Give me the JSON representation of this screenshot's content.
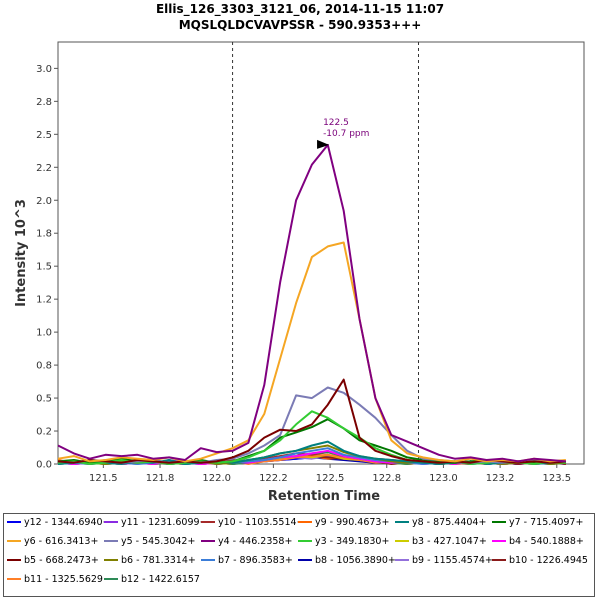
{
  "chart_data": {
    "type": "line",
    "title": "Ellis_126_3303_3121_06, 2014-11-15 11:07",
    "subtitle": "MQSLQLDCVAVPSSR - 590.9353+++",
    "xlabel": "Retention Time",
    "ylabel": "Intensity 10^3",
    "xlim": [
      121.3,
      123.62
    ],
    "ylim": [
      0,
      3.2
    ],
    "xticks": [
      "121.5",
      "121.8",
      "122.0",
      "122.2",
      "122.5",
      "122.8",
      "123.0",
      "123.2",
      "123.5"
    ],
    "xtick_values": [
      121.5,
      121.75,
      122.0,
      122.25,
      122.5,
      122.75,
      123.0,
      123.25,
      123.5
    ],
    "yticks": [
      "0.0",
      "0.2",
      "0.5",
      "0.8",
      "1.0",
      "1.2",
      "1.5",
      "1.8",
      "2.0",
      "2.2",
      "2.5",
      "2.8",
      "3.0"
    ],
    "ytick_values": [
      0,
      0.25,
      0.5,
      0.75,
      1.0,
      1.25,
      1.5,
      1.75,
      2.0,
      2.25,
      2.5,
      2.75,
      3.0
    ],
    "vlines": [
      122.07,
      122.89
    ],
    "annotation": {
      "rt": "122.5",
      "ppm": "-10.7 ppm",
      "x": 122.5,
      "y": 2.42
    },
    "x": [
      121.3,
      121.37,
      121.44,
      121.51,
      121.58,
      121.65,
      121.72,
      121.79,
      121.86,
      121.93,
      122.0,
      122.07,
      122.14,
      122.21,
      122.28,
      122.35,
      122.42,
      122.49,
      122.56,
      122.63,
      122.7,
      122.77,
      122.84,
      122.91,
      122.98,
      123.05,
      123.12,
      123.19,
      123.26,
      123.33,
      123.4,
      123.47,
      123.54
    ],
    "series": [
      {
        "name": "y12 - 1344.6940+",
        "color": "#0000ee",
        "values": [
          0.01,
          0.0,
          0.02,
          0.01,
          0.0,
          0.01,
          0.02,
          0.0,
          0.01,
          0.0,
          0.01,
          0.02,
          0.01,
          0.02,
          0.03,
          0.04,
          0.05,
          0.06,
          0.04,
          0.03,
          0.02,
          0.01,
          0.02,
          0.01,
          0.0,
          0.01,
          0.02,
          0.0,
          0.01,
          0.0,
          0.01,
          0.02,
          0.01
        ]
      },
      {
        "name": "y11 - 1231.6099+",
        "color": "#8a2be2",
        "values": [
          0.0,
          0.02,
          0.01,
          0.03,
          0.01,
          0.02,
          0.0,
          0.03,
          0.01,
          0.02,
          0.01,
          0.0,
          0.02,
          0.03,
          0.04,
          0.05,
          0.06,
          0.05,
          0.04,
          0.05,
          0.03,
          0.02,
          0.01,
          0.02,
          0.01,
          0.02,
          0.0,
          0.01,
          0.02,
          0.01,
          0.0,
          0.01,
          0.02
        ]
      },
      {
        "name": "y10 - 1103.5514+",
        "color": "#a52a2a",
        "values": [
          0.02,
          0.01,
          0.0,
          0.02,
          0.03,
          0.01,
          0.02,
          0.01,
          0.0,
          0.02,
          0.01,
          0.03,
          0.02,
          0.04,
          0.06,
          0.08,
          0.07,
          0.09,
          0.06,
          0.05,
          0.04,
          0.03,
          0.02,
          0.01,
          0.02,
          0.01,
          0.0,
          0.02,
          0.01,
          0.02,
          0.01,
          0.0,
          0.01
        ]
      },
      {
        "name": "y9 - 990.4673+",
        "color": "#ff6600",
        "values": [
          0.03,
          0.01,
          0.02,
          0.0,
          0.01,
          0.03,
          0.02,
          0.01,
          0.02,
          0.0,
          0.02,
          0.01,
          0.03,
          0.02,
          0.04,
          0.05,
          0.06,
          0.04,
          0.05,
          0.03,
          0.02,
          0.03,
          0.01,
          0.02,
          0.0,
          0.01,
          0.02,
          0.01,
          0.0,
          0.02,
          0.01,
          0.02,
          0.0
        ]
      },
      {
        "name": "y8 - 875.4404+",
        "color": "#008080",
        "values": [
          0.0,
          0.01,
          0.02,
          0.01,
          0.0,
          0.02,
          0.01,
          0.03,
          0.0,
          0.01,
          0.02,
          0.01,
          0.03,
          0.05,
          0.08,
          0.1,
          0.14,
          0.17,
          0.1,
          0.06,
          0.04,
          0.03,
          0.02,
          0.01,
          0.0,
          0.01,
          0.02,
          0.0,
          0.01,
          0.02,
          0.0,
          0.01,
          0.02
        ]
      },
      {
        "name": "y7 - 715.4097+",
        "color": "#007700",
        "values": [
          0.02,
          0.03,
          0.01,
          0.02,
          0.04,
          0.02,
          0.03,
          0.01,
          0.02,
          0.03,
          0.01,
          0.02,
          0.06,
          0.1,
          0.2,
          0.24,
          0.28,
          0.34,
          0.27,
          0.18,
          0.14,
          0.1,
          0.05,
          0.03,
          0.02,
          0.01,
          0.02,
          0.03,
          0.01,
          0.02,
          0.01,
          0.02,
          0.01
        ]
      },
      {
        "name": "y6 - 616.3413+",
        "color": "#f5a623",
        "values": [
          0.04,
          0.06,
          0.02,
          0.03,
          0.05,
          0.04,
          0.03,
          0.05,
          0.02,
          0.04,
          0.08,
          0.12,
          0.18,
          0.38,
          0.8,
          1.22,
          1.57,
          1.65,
          1.68,
          1.1,
          0.5,
          0.18,
          0.08,
          0.05,
          0.03,
          0.02,
          0.04,
          0.02,
          0.03,
          0.02,
          0.04,
          0.02,
          0.03
        ]
      },
      {
        "name": "y5 - 545.3042+",
        "color": "#7b7bb5",
        "values": [
          0.02,
          0.01,
          0.03,
          0.02,
          0.01,
          0.02,
          0.03,
          0.01,
          0.02,
          0.01,
          0.03,
          0.04,
          0.08,
          0.14,
          0.22,
          0.52,
          0.5,
          0.58,
          0.54,
          0.45,
          0.35,
          0.22,
          0.1,
          0.04,
          0.03,
          0.02,
          0.01,
          0.02,
          0.01,
          0.02,
          0.03,
          0.01,
          0.02
        ]
      },
      {
        "name": "y4 - 446.2358+",
        "color": "#800080",
        "values": [
          0.14,
          0.08,
          0.04,
          0.07,
          0.06,
          0.07,
          0.04,
          0.05,
          0.03,
          0.12,
          0.09,
          0.1,
          0.16,
          0.6,
          1.38,
          2.0,
          2.27,
          2.42,
          1.92,
          1.1,
          0.5,
          0.22,
          0.17,
          0.12,
          0.07,
          0.04,
          0.05,
          0.03,
          0.04,
          0.02,
          0.04,
          0.03,
          0.02
        ]
      },
      {
        "name": "y3 - 349.1830+",
        "color": "#33cc33",
        "values": [
          0.01,
          0.02,
          0.0,
          0.01,
          0.03,
          0.01,
          0.02,
          0.0,
          0.01,
          0.02,
          0.01,
          0.02,
          0.05,
          0.1,
          0.18,
          0.3,
          0.4,
          0.35,
          0.27,
          0.2,
          0.12,
          0.07,
          0.03,
          0.02,
          0.01,
          0.02,
          0.0,
          0.01,
          0.02,
          0.01,
          0.0,
          0.02,
          0.01
        ]
      },
      {
        "name": "b3 - 427.1047+",
        "color": "#cccc00",
        "values": [
          0.0,
          0.01,
          0.02,
          0.01,
          0.0,
          0.01,
          0.02,
          0.01,
          0.0,
          0.02,
          0.01,
          0.0,
          0.02,
          0.03,
          0.04,
          0.06,
          0.05,
          0.07,
          0.04,
          0.03,
          0.02,
          0.01,
          0.0,
          0.01,
          0.02,
          0.0,
          0.01,
          0.02,
          0.0,
          0.01,
          0.02,
          0.0,
          0.01
        ]
      },
      {
        "name": "b4 - 540.1888+",
        "color": "#ff00ff",
        "values": [
          0.01,
          0.0,
          0.01,
          0.02,
          0.0,
          0.01,
          0.0,
          0.02,
          0.01,
          0.0,
          0.01,
          0.02,
          0.01,
          0.03,
          0.05,
          0.06,
          0.08,
          0.1,
          0.06,
          0.04,
          0.02,
          0.01,
          0.02,
          0.0,
          0.01,
          0.0,
          0.02,
          0.01,
          0.0,
          0.01,
          0.0,
          0.02,
          0.01
        ]
      },
      {
        "name": "b5 - 668.2473+",
        "color": "#7a0000",
        "values": [
          0.02,
          0.01,
          0.03,
          0.02,
          0.01,
          0.03,
          0.02,
          0.01,
          0.02,
          0.01,
          0.02,
          0.05,
          0.1,
          0.2,
          0.26,
          0.25,
          0.3,
          0.45,
          0.64,
          0.2,
          0.1,
          0.06,
          0.03,
          0.02,
          0.01,
          0.02,
          0.01,
          0.03,
          0.02,
          0.01,
          0.02,
          0.01,
          0.02
        ]
      },
      {
        "name": "b6 - 781.3314+",
        "color": "#808000",
        "values": [
          0.01,
          0.02,
          0.01,
          0.0,
          0.02,
          0.01,
          0.02,
          0.0,
          0.01,
          0.02,
          0.0,
          0.01,
          0.03,
          0.05,
          0.08,
          0.1,
          0.12,
          0.14,
          0.09,
          0.06,
          0.04,
          0.02,
          0.01,
          0.02,
          0.0,
          0.01,
          0.02,
          0.01,
          0.0,
          0.01,
          0.02,
          0.0,
          0.01
        ]
      },
      {
        "name": "b7 - 896.3583+",
        "color": "#3b7dd8",
        "values": [
          0.0,
          0.01,
          0.0,
          0.02,
          0.01,
          0.0,
          0.01,
          0.02,
          0.0,
          0.01,
          0.02,
          0.01,
          0.02,
          0.03,
          0.05,
          0.08,
          0.1,
          0.12,
          0.07,
          0.05,
          0.03,
          0.02,
          0.01,
          0.0,
          0.01,
          0.02,
          0.0,
          0.01,
          0.0,
          0.02,
          0.01,
          0.0,
          0.01
        ]
      },
      {
        "name": "b8 - 1056.3890+",
        "color": "#0000aa",
        "values": [
          0.01,
          0.02,
          0.0,
          0.01,
          0.0,
          0.02,
          0.01,
          0.0,
          0.01,
          0.02,
          0.0,
          0.01,
          0.02,
          0.02,
          0.03,
          0.04,
          0.05,
          0.04,
          0.03,
          0.02,
          0.01,
          0.02,
          0.0,
          0.01,
          0.0,
          0.01,
          0.02,
          0.0,
          0.01,
          0.0,
          0.02,
          0.01,
          0.0
        ]
      },
      {
        "name": "b9 - 1155.4574+",
        "color": "#9370db",
        "values": [
          0.0,
          0.01,
          0.02,
          0.0,
          0.01,
          0.0,
          0.02,
          0.01,
          0.0,
          0.01,
          0.0,
          0.02,
          0.01,
          0.02,
          0.04,
          0.05,
          0.04,
          0.06,
          0.04,
          0.03,
          0.02,
          0.01,
          0.02,
          0.0,
          0.01,
          0.0,
          0.01,
          0.02,
          0.0,
          0.01,
          0.0,
          0.01,
          0.02
        ]
      },
      {
        "name": "b10 - 1226.4945+",
        "color": "#8b1a1a",
        "values": [
          0.02,
          0.0,
          0.01,
          0.02,
          0.0,
          0.01,
          0.0,
          0.01,
          0.02,
          0.0,
          0.01,
          0.0,
          0.02,
          0.03,
          0.04,
          0.05,
          0.06,
          0.05,
          0.04,
          0.03,
          0.02,
          0.0,
          0.01,
          0.02,
          0.0,
          0.01,
          0.0,
          0.02,
          0.01,
          0.0,
          0.01,
          0.02,
          0.0
        ]
      },
      {
        "name": "b11 - 1325.5629+",
        "color": "#ff7f27",
        "values": [
          0.0,
          0.02,
          0.01,
          0.0,
          0.02,
          0.01,
          0.0,
          0.01,
          0.02,
          0.0,
          0.01,
          0.02,
          0.0,
          0.02,
          0.03,
          0.05,
          0.06,
          0.07,
          0.05,
          0.03,
          0.01,
          0.02,
          0.0,
          0.01,
          0.02,
          0.0,
          0.01,
          0.0,
          0.02,
          0.01,
          0.0,
          0.01,
          0.02
        ]
      },
      {
        "name": "b12 - 1422.6157+",
        "color": "#2e8b57",
        "values": [
          0.01,
          0.0,
          0.01,
          0.0,
          0.01,
          0.02,
          0.0,
          0.01,
          0.0,
          0.01,
          0.02,
          0.0,
          0.01,
          0.03,
          0.05,
          0.06,
          0.08,
          0.09,
          0.06,
          0.04,
          0.02,
          0.01,
          0.0,
          0.02,
          0.01,
          0.0,
          0.02,
          0.01,
          0.0,
          0.01,
          0.02,
          0.0,
          0.01
        ]
      }
    ]
  }
}
